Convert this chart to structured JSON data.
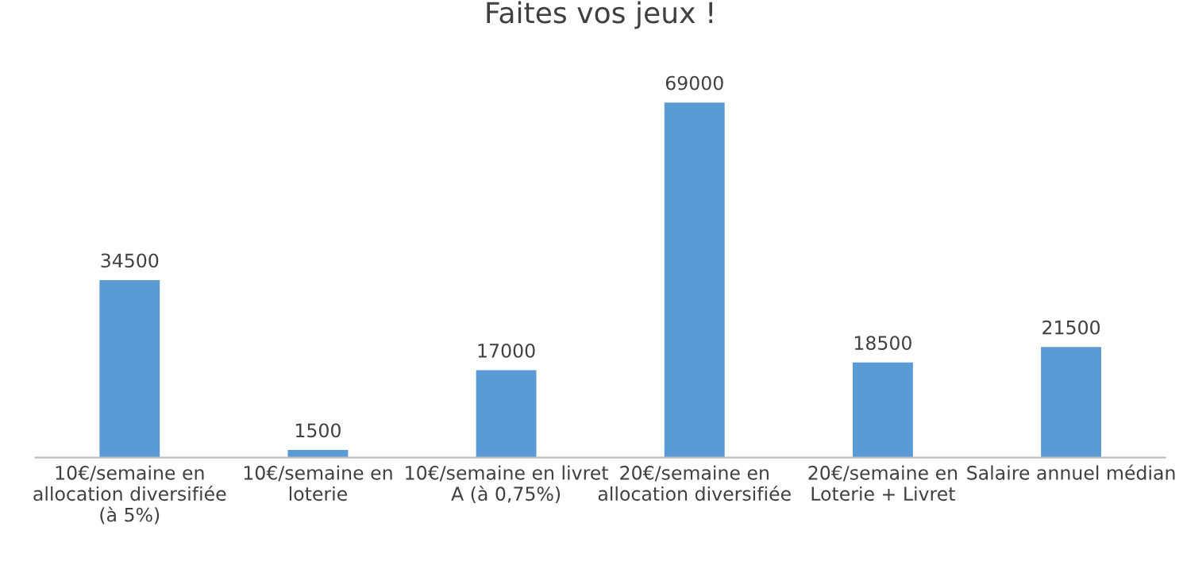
{
  "chart_data": {
    "type": "bar",
    "title": "Faites vos jeux !",
    "categories": [
      "10€/semaine en\nallocation diversifiée\n(à 5%)",
      "10€/semaine en\nloterie",
      "10€/semaine en livret\nA (à 0,75%)",
      "20€/semaine en\nallocation diversifiée",
      "20€/semaine en\nLoterie + Livret",
      "Salaire annuel médian"
    ],
    "values": [
      34500,
      1500,
      17000,
      69000,
      18500,
      21500
    ],
    "color": "#5b9bd5",
    "data_labels": true,
    "grid": false,
    "legend": false
  }
}
